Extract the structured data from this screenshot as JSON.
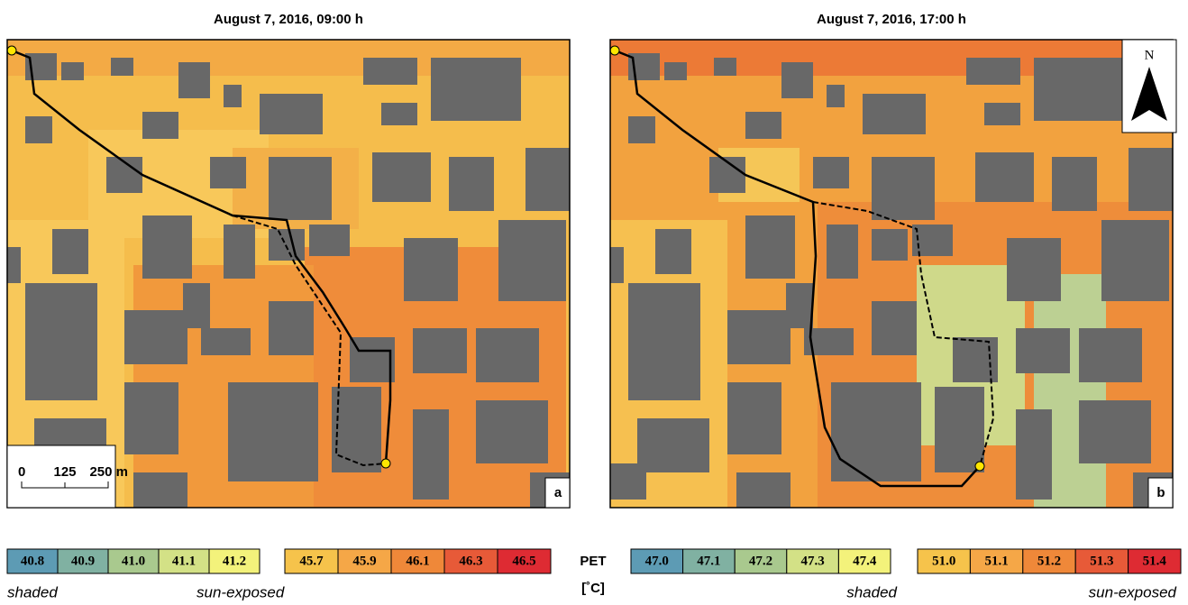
{
  "panels": [
    {
      "title": "August 7, 2016, 09:00 h",
      "label": "a"
    },
    {
      "title": "August 7, 2016, 17:00 h",
      "label": "b"
    }
  ],
  "scale_bar": {
    "labels": [
      "0",
      "125",
      "250 m"
    ]
  },
  "north_arrow": "N",
  "legend": [
    {
      "shaded": {
        "label": "shaded",
        "classes": [
          "40.8",
          "40.9",
          "41.0",
          "41.1",
          "41.2"
        ]
      },
      "sun_exposed": {
        "label": "sun-exposed",
        "classes": [
          "45.7",
          "45.9",
          "46.1",
          "46.3",
          "46.5"
        ]
      }
    },
    {
      "shaded": {
        "label": "shaded",
        "classes": [
          "47.0",
          "47.1",
          "47.2",
          "47.3",
          "47.4"
        ]
      },
      "sun_exposed": {
        "label": "sun-exposed",
        "classes": [
          "51.0",
          "51.1",
          "51.2",
          "51.3",
          "51.4"
        ]
      }
    }
  ],
  "unit": {
    "name": "PET",
    "label": "[˚C]"
  }
}
